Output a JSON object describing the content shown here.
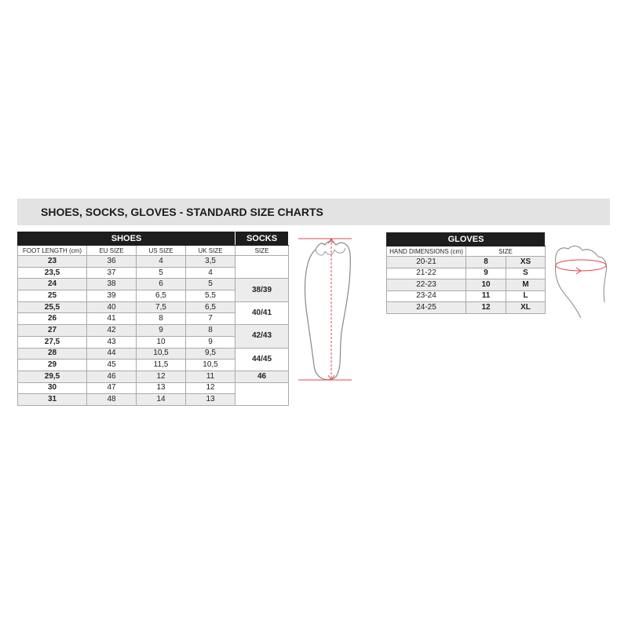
{
  "title": "SHOES, SOCKS, GLOVES - STANDARD SIZE CHARTS",
  "shoes": {
    "header": "SHOES",
    "columns": [
      "FOOT LENGTH (cm)",
      "EU SIZE",
      "US SIZE",
      "UK SIZE"
    ],
    "rows": [
      [
        "23",
        "36",
        "4",
        "3,5"
      ],
      [
        "23,5",
        "37",
        "5",
        "4"
      ],
      [
        "24",
        "38",
        "6",
        "5"
      ],
      [
        "25",
        "39",
        "6,5",
        "5,5"
      ],
      [
        "25,5",
        "40",
        "7,5",
        "6,5"
      ],
      [
        "26",
        "41",
        "8",
        "7"
      ],
      [
        "27",
        "42",
        "9",
        "8"
      ],
      [
        "27,5",
        "43",
        "10",
        "9"
      ],
      [
        "28",
        "44",
        "10,5",
        "9,5"
      ],
      [
        "29",
        "45",
        "11,5",
        "10,5"
      ],
      [
        "29,5",
        "46",
        "12",
        "11"
      ],
      [
        "30",
        "47",
        "13",
        "12"
      ],
      [
        "31",
        "48",
        "14",
        "13"
      ]
    ]
  },
  "socks": {
    "header": "SOCKS",
    "column": "SIZE",
    "sizes": [
      "38/39",
      "40/41",
      "42/43",
      "44/45",
      "46"
    ]
  },
  "gloves": {
    "header": "GLOVES",
    "columns": [
      "HAND DIMENSIONS (cm)",
      "SIZE"
    ],
    "rows": [
      [
        "20-21",
        "8",
        "XS"
      ],
      [
        "21-22",
        "9",
        "S"
      ],
      [
        "22-23",
        "10",
        "M"
      ],
      [
        "23-24",
        "11",
        "L"
      ],
      [
        "24-25",
        "12",
        "XL"
      ]
    ]
  },
  "colors": {
    "header_bg": "#1d1d1d",
    "row_shade": "#ececec",
    "measure_line": "#e0474c"
  }
}
